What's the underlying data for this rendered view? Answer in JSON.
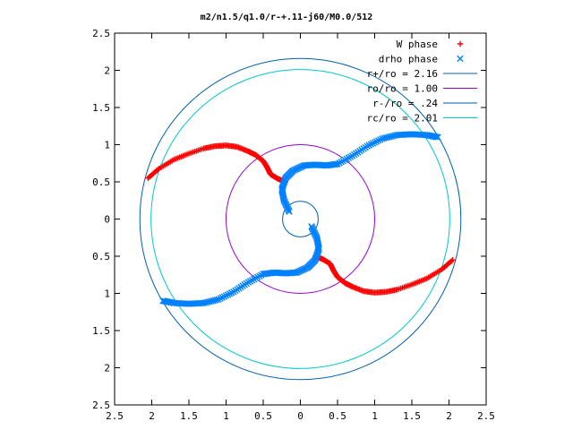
{
  "chart_data": {
    "type": "scatter",
    "title": "m2/n1.5/q1.0/r-+.11-j60/M0.0/512",
    "xlabel": "",
    "ylabel": "",
    "xlim": [
      -2.5,
      2.5
    ],
    "ylim": [
      -2.5,
      2.5
    ],
    "x_ticks": [
      -2.5,
      -2,
      -1.5,
      -1,
      -0.5,
      0,
      0.5,
      1,
      1.5,
      2,
      2.5
    ],
    "y_ticks": [
      -2.5,
      -2,
      -1.5,
      -1,
      -0.5,
      0,
      0.5,
      1,
      1.5,
      2,
      2.5
    ],
    "x_tick_labels": [
      "2.5",
      "2",
      "1.5",
      "1",
      "0.5",
      "0",
      "0.5",
      "1",
      "1.5",
      "2",
      "2.5"
    ],
    "y_tick_labels": [
      "2.5",
      "2",
      "1.5",
      "1",
      "0.5",
      "0",
      "0.5",
      "1",
      "1.5",
      "2",
      "2.5"
    ],
    "grid": false,
    "legend_position": "top-right",
    "series": [
      {
        "name": "W phase",
        "marker": "+",
        "color": "#ff0000",
        "x": [
          0.2,
          0.3,
          0.4,
          0.45,
          0.5,
          0.6,
          0.7,
          0.85,
          1.0,
          1.15,
          1.3,
          1.5,
          1.7,
          1.9,
          2.05,
          -0.2,
          -0.3,
          -0.4,
          -0.45,
          -0.5,
          -0.6,
          -0.7,
          -0.85,
          -1.0,
          -1.15,
          -1.3,
          -1.5,
          -1.7,
          -1.9,
          -2.05
        ],
        "y": [
          -0.5,
          -0.54,
          -0.6,
          -0.7,
          -0.78,
          -0.86,
          -0.91,
          -0.97,
          -0.99,
          -0.98,
          -0.95,
          -0.88,
          -0.8,
          -0.68,
          -0.55,
          0.5,
          0.54,
          0.6,
          0.7,
          0.78,
          0.86,
          0.91,
          0.97,
          0.99,
          0.98,
          0.95,
          0.88,
          0.8,
          0.68,
          0.55
        ]
      },
      {
        "name": "drho phase",
        "marker": "x",
        "color": "#0080ff",
        "x": [
          -0.15,
          -0.22,
          -0.25,
          -0.2,
          -0.1,
          0.05,
          0.2,
          0.35,
          0.5,
          0.7,
          0.9,
          1.1,
          1.3,
          1.5,
          1.7,
          1.85,
          0.15,
          0.22,
          0.25,
          0.2,
          0.1,
          -0.05,
          -0.2,
          -0.35,
          -0.5,
          -0.7,
          -0.9,
          -1.1,
          -1.3,
          -1.5,
          -1.7,
          -1.85
        ],
        "y": [
          0.1,
          0.25,
          0.4,
          0.55,
          0.65,
          0.72,
          0.73,
          0.72,
          0.74,
          0.85,
          0.98,
          1.08,
          1.13,
          1.14,
          1.13,
          1.1,
          -0.1,
          -0.25,
          -0.4,
          -0.55,
          -0.65,
          -0.72,
          -0.73,
          -0.72,
          -0.74,
          -0.85,
          -0.98,
          -1.08,
          -1.13,
          -1.14,
          -1.13,
          -1.1
        ]
      }
    ],
    "circles": [
      {
        "name": "r+/ro = 2.16",
        "r": 2.16,
        "color": "#0060ad"
      },
      {
        "name": "ro/ro = 1.00",
        "r": 1.0,
        "color": "#9400d3"
      },
      {
        "name": "r-/ro = .24",
        "r": 0.24,
        "color": "#0060ad"
      },
      {
        "name": "rc/ro = 2.01",
        "r": 2.01,
        "color": "#00c8c8"
      }
    ]
  }
}
